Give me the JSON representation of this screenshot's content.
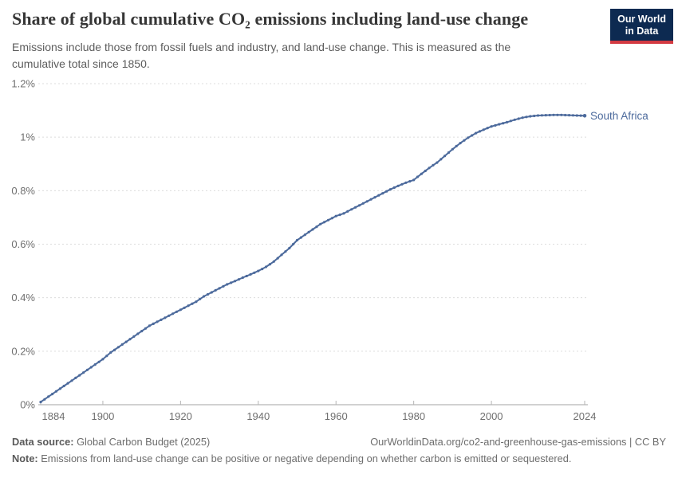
{
  "header": {
    "title": "Share of global cumulative CO₂ emissions including land-use change",
    "subtitle": "Emissions include those from fossil fuels and industry, and land-use change. This is measured as the cumulative total since 1850.",
    "logo": {
      "line1": "Our World",
      "line2": "in Data"
    }
  },
  "chart_data": {
    "type": "line",
    "title": "Share of global cumulative CO₂ emissions including land-use change",
    "xlabel": "",
    "ylabel": "",
    "xlim": [
      1884,
      2024
    ],
    "ylim": [
      0,
      1.2
    ],
    "grid": "horizontal-dashed",
    "legend_position": "end-of-line",
    "x_ticks": [
      1884,
      1900,
      1920,
      1940,
      1960,
      1980,
      2000,
      2024
    ],
    "y_ticks": [
      {
        "value": 0,
        "label": "0%"
      },
      {
        "value": 0.2,
        "label": "0.2%"
      },
      {
        "value": 0.4,
        "label": "0.4%"
      },
      {
        "value": 0.6,
        "label": "0.6%"
      },
      {
        "value": 0.8,
        "label": "0.8%"
      },
      {
        "value": 1.0,
        "label": "1%"
      },
      {
        "value": 1.2,
        "label": "1.2%"
      }
    ],
    "x": [
      1884,
      1886,
      1888,
      1890,
      1892,
      1894,
      1896,
      1898,
      1900,
      1902,
      1904,
      1906,
      1908,
      1910,
      1912,
      1914,
      1916,
      1918,
      1920,
      1922,
      1924,
      1926,
      1928,
      1930,
      1932,
      1934,
      1936,
      1938,
      1940,
      1942,
      1944,
      1946,
      1948,
      1950,
      1952,
      1954,
      1956,
      1958,
      1960,
      1962,
      1964,
      1966,
      1968,
      1970,
      1972,
      1974,
      1976,
      1978,
      1980,
      1982,
      1984,
      1986,
      1988,
      1990,
      1992,
      1994,
      1996,
      1998,
      2000,
      2002,
      2004,
      2006,
      2008,
      2010,
      2012,
      2014,
      2016,
      2018,
      2020,
      2022,
      2024
    ],
    "series": [
      {
        "name": "South Africa",
        "color": "#4C6A9C",
        "unit": "%",
        "values": [
          0.01,
          0.03,
          0.05,
          0.07,
          0.09,
          0.11,
          0.13,
          0.15,
          0.17,
          0.195,
          0.215,
          0.235,
          0.255,
          0.275,
          0.295,
          0.31,
          0.325,
          0.34,
          0.355,
          0.37,
          0.385,
          0.405,
          0.42,
          0.435,
          0.45,
          0.462,
          0.475,
          0.487,
          0.5,
          0.515,
          0.535,
          0.56,
          0.585,
          0.615,
          0.635,
          0.655,
          0.675,
          0.69,
          0.705,
          0.715,
          0.73,
          0.745,
          0.76,
          0.775,
          0.79,
          0.805,
          0.818,
          0.83,
          0.84,
          0.863,
          0.885,
          0.905,
          0.93,
          0.955,
          0.978,
          0.998,
          1.015,
          1.028,
          1.04,
          1.048,
          1.056,
          1.065,
          1.073,
          1.078,
          1.081,
          1.082,
          1.083,
          1.083,
          1.082,
          1.081,
          1.08
        ]
      }
    ]
  },
  "footer": {
    "datasource_label": "Data source:",
    "datasource_value": "Global Carbon Budget (2025)",
    "attribution": "OurWorldinData.org/co2-and-greenhouse-gas-emissions | CC BY",
    "note_label": "Note:",
    "note_value": "Emissions from land-use change can be positive or negative depending on whether carbon is emitted or sequestered."
  },
  "colors": {
    "series_line": "#4C6A9C",
    "gridline": "#dcdcdc",
    "axis_line": "#a3a3a3",
    "tick_label": "#6f6f6f",
    "title_text": "#363636",
    "subtitle_text": "#5c5c5c",
    "logo_background": "#0d2a51",
    "logo_stripe": "#d33a42"
  }
}
